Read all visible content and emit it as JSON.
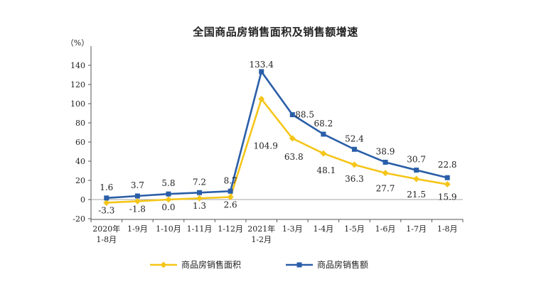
{
  "chart_data": {
    "type": "line",
    "title": "全国商品房销售面积及销售额增速",
    "ylabel": "（%）",
    "xlabel": "",
    "ylim": [
      -20,
      140
    ],
    "yticks": [
      "-20",
      "0",
      "20",
      "40",
      "60",
      "80",
      "100",
      "120",
      "140"
    ],
    "categories": [
      "2020年1-8月",
      "1-9月",
      "1-10月",
      "1-11月",
      "1-12月",
      "2021年1-2月",
      "1-3月",
      "1-4月",
      "1-5月",
      "1-6月",
      "1-7月",
      "1-8月"
    ],
    "category_lines": [
      [
        "2020年",
        "1-8月"
      ],
      [
        "1-9月"
      ],
      [
        "1-10月"
      ],
      [
        "1-11月"
      ],
      [
        "1-12月"
      ],
      [
        "2021年",
        "1-2月"
      ],
      [
        "1-3月"
      ],
      [
        "1-4月"
      ],
      [
        "1-5月"
      ],
      [
        "1-6月"
      ],
      [
        "1-7月"
      ],
      [
        "1-8月"
      ]
    ],
    "series": [
      {
        "name": "商品房销售面积",
        "color": "#f5c518",
        "marker": "diamond",
        "values": [
          -3.3,
          -1.8,
          0.0,
          1.3,
          2.6,
          104.9,
          63.8,
          48.1,
          36.3,
          27.7,
          21.5,
          15.9
        ],
        "labels": [
          "-3.3",
          "-1.8",
          "0.0",
          "1.3",
          "2.6",
          "104.9",
          "63.8",
          "48.1",
          "36.3",
          "27.7",
          "21.5",
          "15.9"
        ]
      },
      {
        "name": "商品房销售额",
        "color": "#2a5ea8",
        "marker": "square",
        "values": [
          1.6,
          3.7,
          5.8,
          7.2,
          8.7,
          133.4,
          88.5,
          68.2,
          52.4,
          38.9,
          30.7,
          22.8
        ],
        "labels": [
          "1.6",
          "3.7",
          "5.8",
          "7.2",
          "8.7",
          "133.4",
          "88.5",
          "68.2",
          "52.4",
          "38.9",
          "30.7",
          "22.8"
        ]
      }
    ],
    "legend_position": "bottom"
  }
}
